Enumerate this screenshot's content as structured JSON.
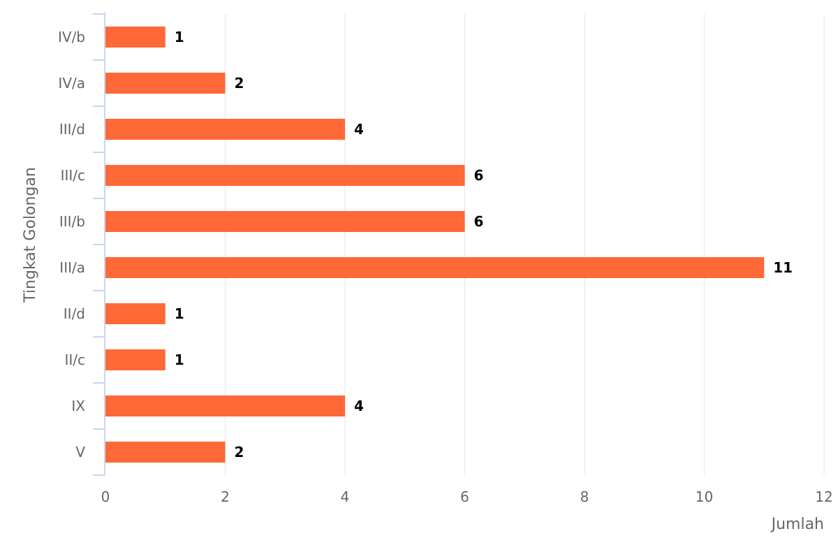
{
  "chart_data": {
    "type": "bar",
    "orientation": "horizontal",
    "categories": [
      "IV/b",
      "IV/a",
      "III/d",
      "III/c",
      "III/b",
      "III/a",
      "II/d",
      "II/c",
      "IX",
      "V"
    ],
    "values": [
      1,
      2,
      4,
      6,
      6,
      11,
      1,
      1,
      4,
      2
    ],
    "title": "",
    "xlabel": "Jumlah",
    "ylabel": "Tingkat Golongan",
    "xlim": [
      0,
      12
    ],
    "x_ticks": [
      "0",
      "2",
      "4",
      "6",
      "8",
      "10",
      "12"
    ],
    "data_labels": true,
    "grid": true,
    "legend": "none",
    "colors": {
      "bar": "#ff6837",
      "grid": "#e6e6e6",
      "axis": "#ccd6eb",
      "label_text": "#666666",
      "data_label_text": "#000000"
    }
  }
}
